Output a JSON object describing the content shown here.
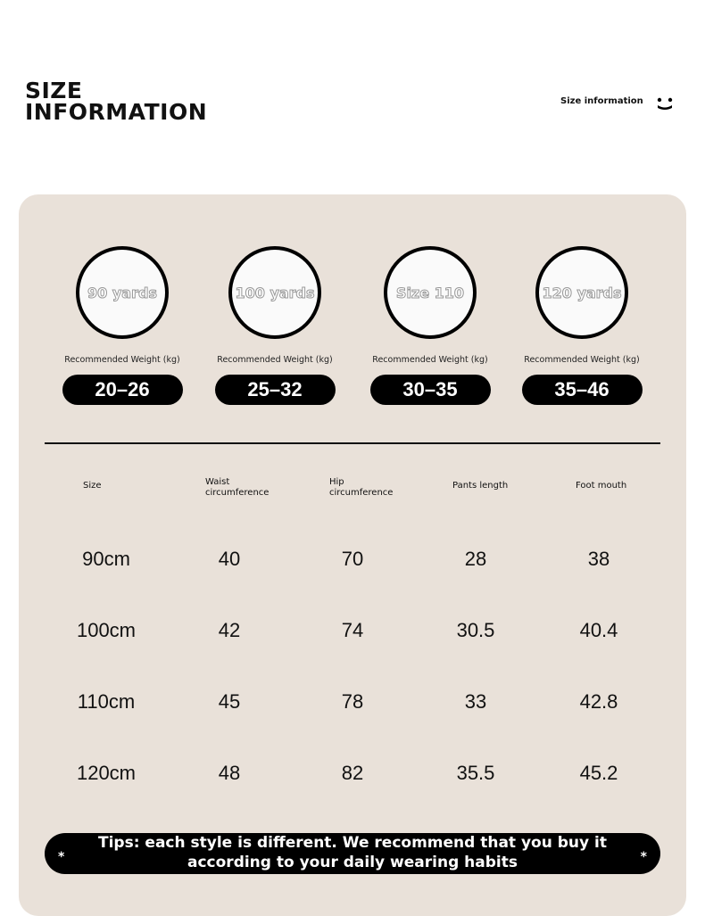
{
  "header": {
    "title_line1": "SIZE",
    "title_line2": "INFORMATION",
    "subtitle": "Size information",
    "icon": "smiley-icon"
  },
  "cards": [
    {
      "label": "90 yards",
      "weight_label": "Recommended Weight (kg)",
      "weight": "20–26"
    },
    {
      "label": "100 yards",
      "weight_label": "Recommended Weight (kg)",
      "weight": "25–32"
    },
    {
      "label": "Size 110",
      "weight_label": "Recommended Weight (kg)",
      "weight": "30–35"
    },
    {
      "label": "120 yards",
      "weight_label": "Recommended Weight (kg)",
      "weight": "35–46"
    }
  ],
  "table": {
    "headers": [
      [
        "Size",
        ""
      ],
      [
        "Waist",
        "circumference"
      ],
      [
        "Hip",
        "circumference"
      ],
      [
        "Pants length",
        ""
      ],
      [
        "Foot mouth",
        ""
      ]
    ],
    "rows": [
      [
        "90cm",
        "40",
        "70",
        "28",
        "38"
      ],
      [
        "100cm",
        "42",
        "74",
        "30.5",
        "40.4"
      ],
      [
        "110cm",
        "45",
        "78",
        "33",
        "42.8"
      ],
      [
        "120cm",
        "48",
        "82",
        "35.5",
        "45.2"
      ]
    ]
  },
  "tips": {
    "line1": "Tips: each style is different. We recommend that you buy it",
    "line2": "according to your daily wearing habits",
    "star": "*"
  },
  "colors": {
    "panel": "#e9e1d9",
    "accent": "#000000"
  }
}
